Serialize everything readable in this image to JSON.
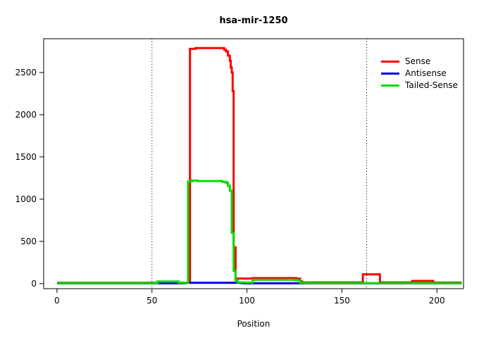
{
  "chart_data": {
    "type": "line",
    "title": "hsa-mir-1250",
    "xlabel": "Position",
    "ylabel": "",
    "xlim": [
      -7,
      214
    ],
    "ylim": [
      -60,
      2900
    ],
    "xticks": [
      0,
      50,
      100,
      150,
      200
    ],
    "yticks": [
      0,
      500,
      1000,
      1500,
      2000,
      2500
    ],
    "grid": "off",
    "legend_position": "top-right",
    "vlines": [
      {
        "x": 50,
        "style": "dotted",
        "color": "#000000"
      },
      {
        "x": 163,
        "style": "dotted",
        "color": "#000000"
      }
    ],
    "series": [
      {
        "name": "Sense",
        "color": "#ff0000",
        "points": [
          [
            0,
            10
          ],
          [
            53,
            10
          ],
          [
            53,
            18
          ],
          [
            56,
            18
          ],
          [
            56,
            22
          ],
          [
            64,
            22
          ],
          [
            64,
            10
          ],
          [
            70,
            10
          ],
          [
            70,
            2780
          ],
          [
            73,
            2780
          ],
          [
            73,
            2790
          ],
          [
            86,
            2790
          ],
          [
            88,
            2790
          ],
          [
            88,
            2770
          ],
          [
            89,
            2770
          ],
          [
            89,
            2750
          ],
          [
            90,
            2750
          ],
          [
            90,
            2700
          ],
          [
            91,
            2700
          ],
          [
            91,
            2640
          ],
          [
            91.5,
            2640
          ],
          [
            91.5,
            2560
          ],
          [
            92,
            2560
          ],
          [
            92,
            2500
          ],
          [
            92.5,
            2500
          ],
          [
            92.5,
            2280
          ],
          [
            93,
            2280
          ],
          [
            93,
            430
          ],
          [
            94,
            430
          ],
          [
            94,
            60
          ],
          [
            95,
            60
          ],
          [
            103,
            60
          ],
          [
            103,
            65
          ],
          [
            126,
            65
          ],
          [
            126,
            58
          ],
          [
            128,
            58
          ],
          [
            128,
            25
          ],
          [
            129,
            25
          ],
          [
            129,
            14
          ],
          [
            160,
            14
          ],
          [
            161,
            14
          ],
          [
            161,
            110
          ],
          [
            170,
            110
          ],
          [
            170,
            14
          ],
          [
            187,
            14
          ],
          [
            187,
            32
          ],
          [
            198,
            32
          ],
          [
            198,
            12
          ],
          [
            213,
            12
          ]
        ]
      },
      {
        "name": "Antisense",
        "color": "#0000dd",
        "points": [
          [
            0,
            3
          ],
          [
            67,
            3
          ],
          [
            69,
            10
          ],
          [
            96,
            10
          ],
          [
            98,
            3
          ],
          [
            213,
            3
          ]
        ]
      },
      {
        "name": "Tailed-Sense",
        "color": "#00dd00",
        "points": [
          [
            0,
            6
          ],
          [
            53,
            6
          ],
          [
            53,
            25
          ],
          [
            64,
            25
          ],
          [
            64,
            8
          ],
          [
            69,
            8
          ],
          [
            69,
            1210
          ],
          [
            71,
            1210
          ],
          [
            71,
            1220
          ],
          [
            74,
            1220
          ],
          [
            74,
            1215
          ],
          [
            87,
            1215
          ],
          [
            87,
            1205
          ],
          [
            89,
            1205
          ],
          [
            89,
            1195
          ],
          [
            90,
            1195
          ],
          [
            90,
            1160
          ],
          [
            91,
            1160
          ],
          [
            91,
            1100
          ],
          [
            92,
            1100
          ],
          [
            92,
            600
          ],
          [
            93,
            600
          ],
          [
            93,
            150
          ],
          [
            94,
            150
          ],
          [
            94,
            40
          ],
          [
            95,
            40
          ],
          [
            95,
            15
          ],
          [
            103,
            12
          ],
          [
            103,
            45
          ],
          [
            126,
            45
          ],
          [
            126,
            40
          ],
          [
            128,
            40
          ],
          [
            128,
            8
          ],
          [
            135,
            6
          ],
          [
            213,
            5
          ]
        ]
      }
    ]
  }
}
